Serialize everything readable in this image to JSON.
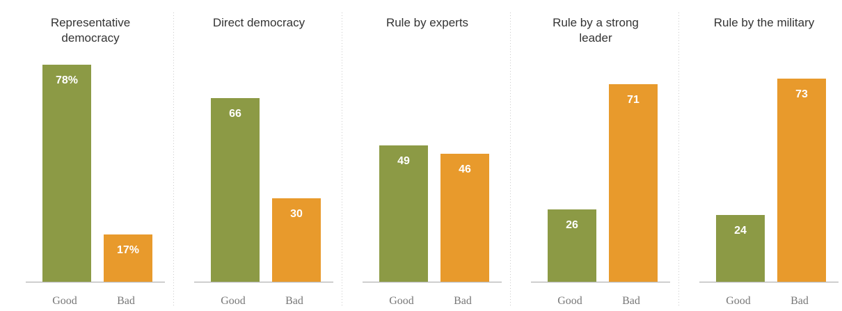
{
  "colors": {
    "good": "#8c9a45",
    "bad": "#e89a2c"
  },
  "chart_data": {
    "type": "bar",
    "categories": [
      "Good",
      "Bad"
    ],
    "ylim": [
      0,
      100
    ],
    "grid": false,
    "panels": [
      {
        "title": [
          "Representative",
          "democracy"
        ],
        "values": [
          78,
          17
        ],
        "labels": [
          "78%",
          "17%"
        ]
      },
      {
        "title": [
          "Direct democracy"
        ],
        "values": [
          66,
          30
        ],
        "labels": [
          "66",
          "30"
        ]
      },
      {
        "title": [
          "Rule by experts"
        ],
        "values": [
          49,
          46
        ],
        "labels": [
          "49",
          "46"
        ]
      },
      {
        "title": [
          "Rule by a strong",
          "leader"
        ],
        "values": [
          26,
          71
        ],
        "labels": [
          "26",
          "71"
        ]
      },
      {
        "title": [
          "Rule by the military"
        ],
        "values": [
          24,
          73
        ],
        "labels": [
          "24",
          "73"
        ]
      }
    ]
  }
}
